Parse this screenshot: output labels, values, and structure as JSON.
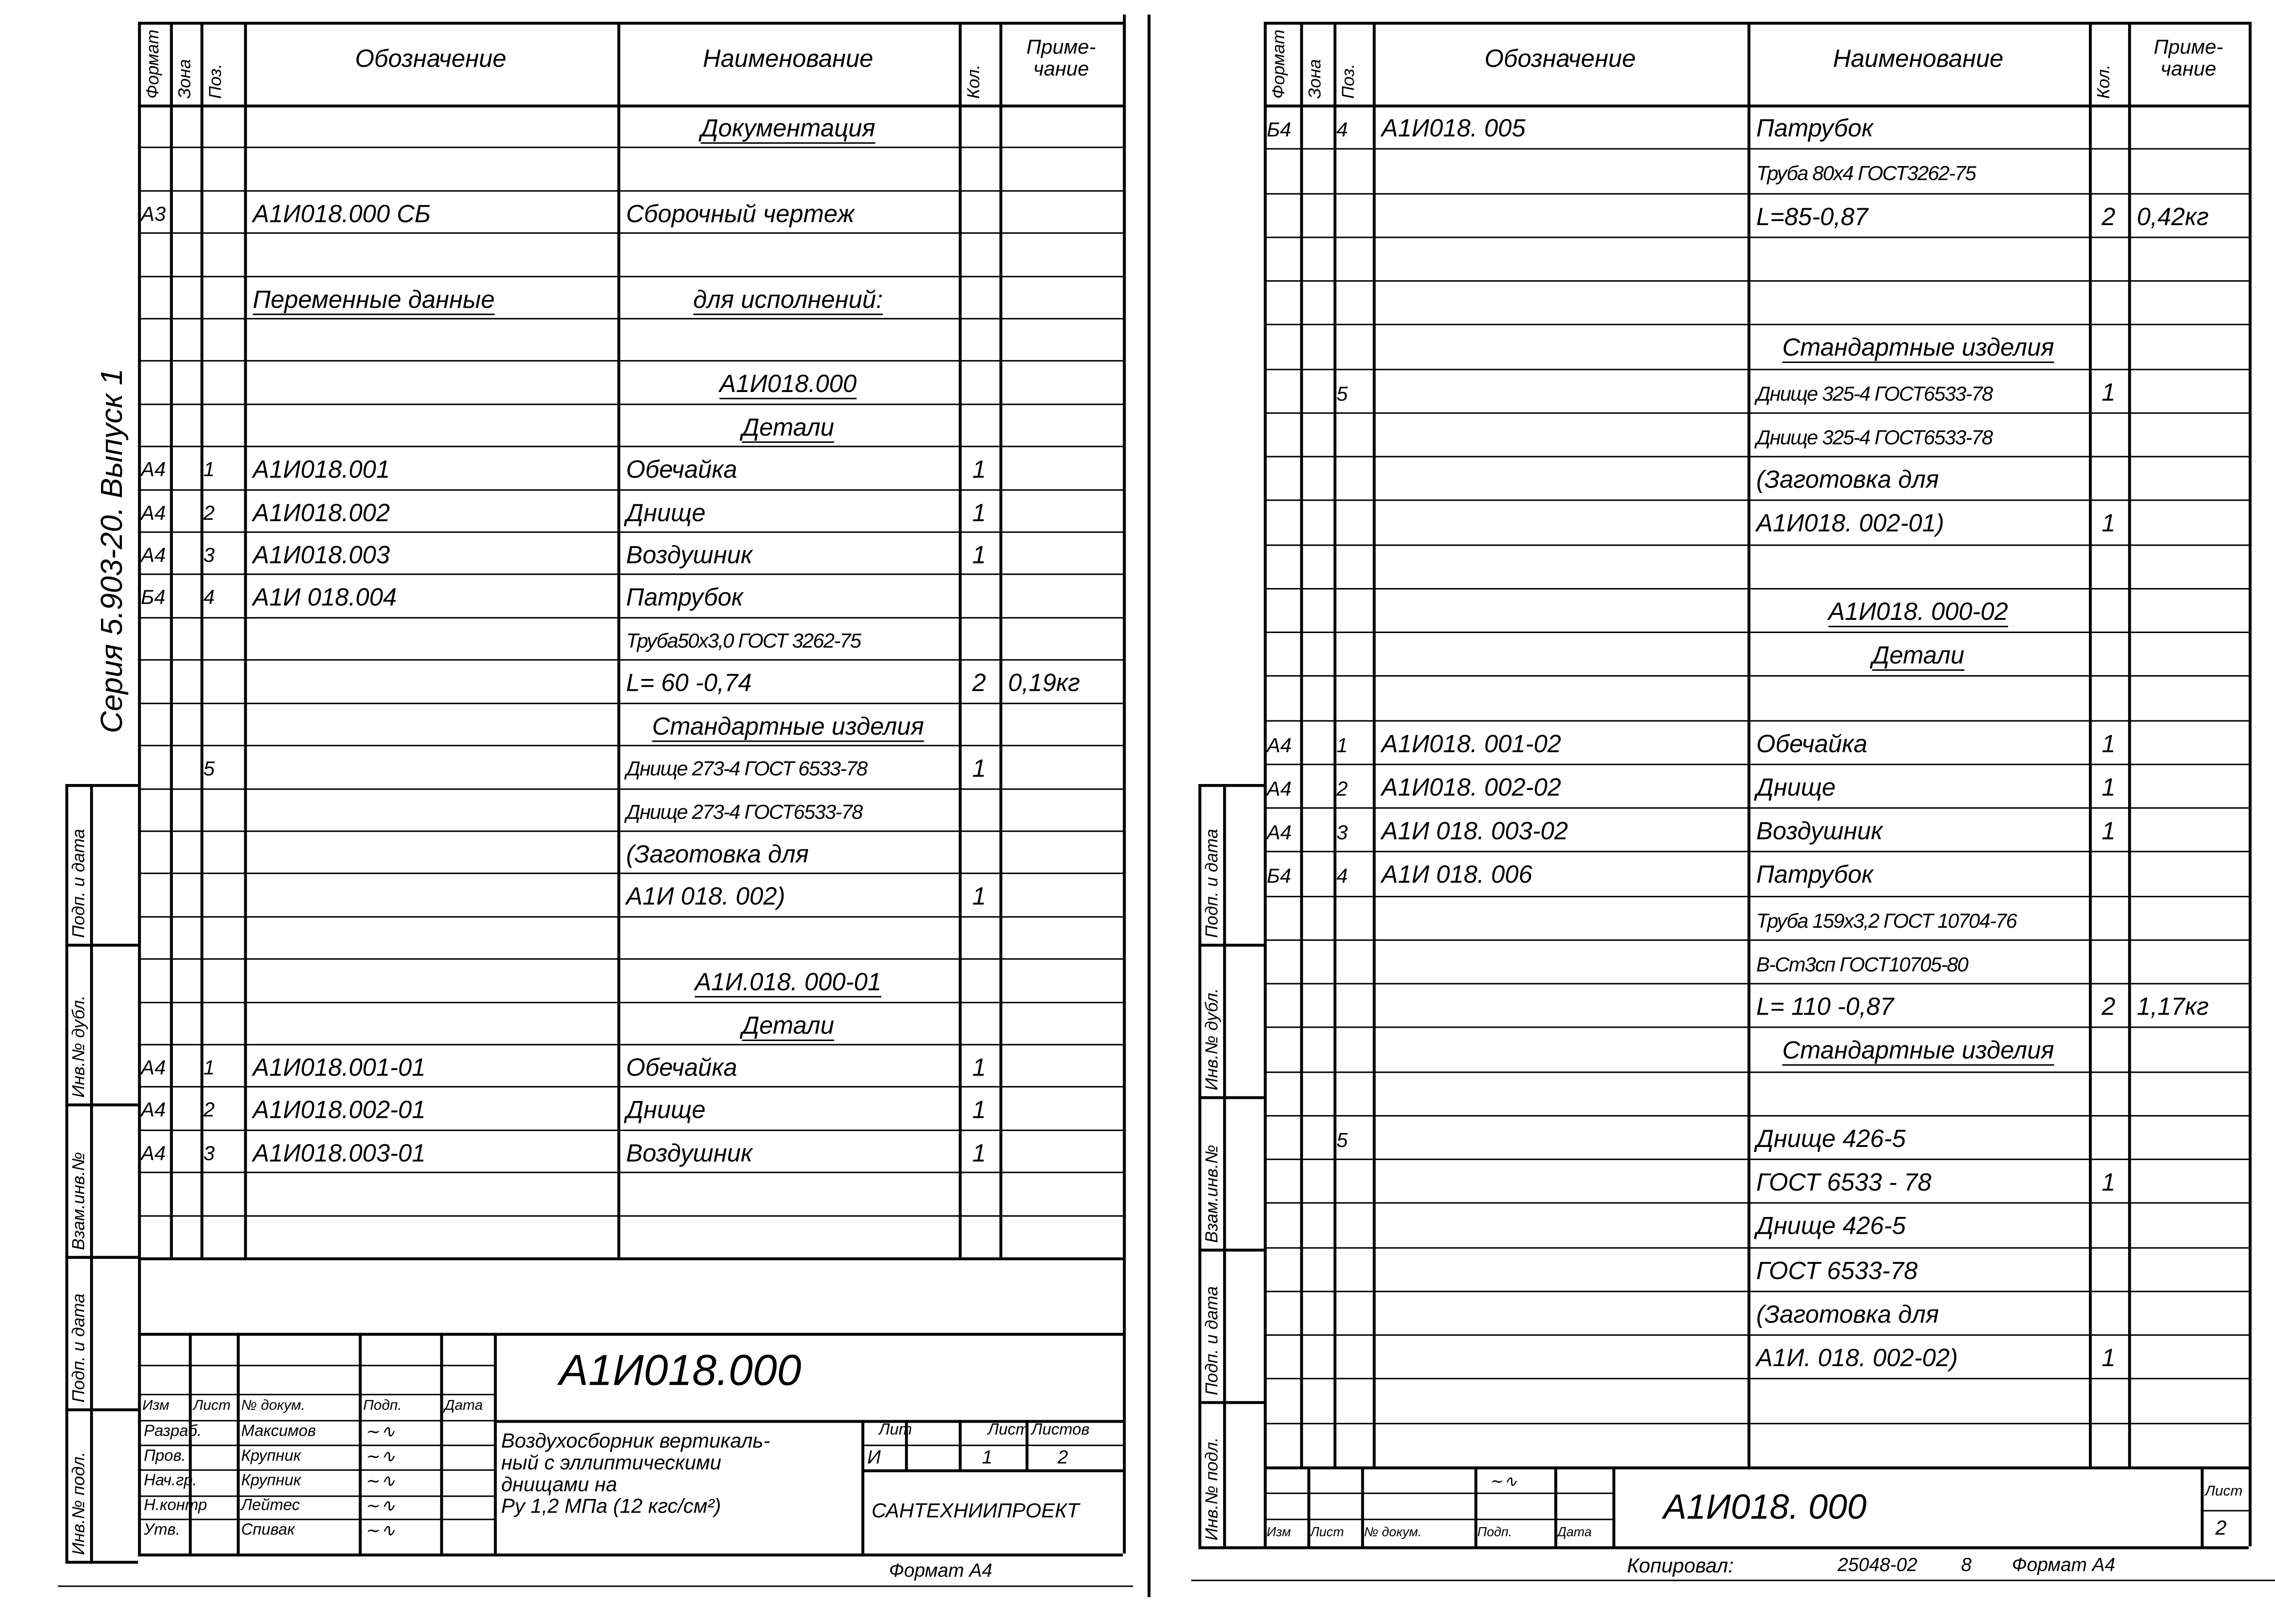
{
  "headers": {
    "format": "Формат",
    "zone": "Зона",
    "pos": "Поз.",
    "designation": "Обозначение",
    "name": "Наименование",
    "qty": "Кол.",
    "note": "Приме-\nчание"
  },
  "left_sheet": {
    "series_label": "Серия 5.903-20. Выпуск 1",
    "rows": [
      {
        "name": "Документация",
        "heading": true
      },
      {},
      {
        "format": "А3",
        "designation": "А1И018.000 СБ",
        "name": "Сборочный чертеж"
      },
      {},
      {
        "designation": "Переменные данные",
        "name": "для исполнений:",
        "heading": true
      },
      {},
      {
        "name": "А1И018.000",
        "heading": true
      },
      {
        "name": "Детали",
        "heading": true
      },
      {
        "format": "А4",
        "pos": "1",
        "designation": "А1И018.001",
        "name": "Обечайка",
        "qty": "1"
      },
      {
        "format": "А4",
        "pos": "2",
        "designation": "А1И018.002",
        "name": "Днище",
        "qty": "1"
      },
      {
        "format": "А4",
        "pos": "3",
        "designation": "А1И018.003",
        "name": "Воздушник",
        "qty": "1"
      },
      {
        "format": "Б4",
        "pos": "4",
        "designation": "А1И 018.004",
        "name": "Патрубок"
      },
      {
        "name": "Труба50х3,0 ГОСТ 3262-75"
      },
      {
        "name": "L= 60 -0,74",
        "qty": "2",
        "note": "0,19кг"
      },
      {
        "name": "Стандартные изделия",
        "heading": true
      },
      {
        "pos": "5",
        "name": "Днище 273-4 ГОСТ 6533-78",
        "qty": "1"
      },
      {
        "name": "Днище 273-4 ГОСТ6533-78"
      },
      {
        "name": "(Заготовка для"
      },
      {
        "name": "А1И 018. 002)",
        "qty": "1"
      },
      {},
      {
        "name": "А1И.018. 000-01",
        "heading": true
      },
      {
        "name": "Детали",
        "heading": true
      },
      {
        "format": "А4",
        "pos": "1",
        "designation": "А1И018.001-01",
        "name": "Обечайка",
        "qty": "1"
      },
      {
        "format": "А4",
        "pos": "2",
        "designation": "А1И018.002-01",
        "name": "Днище",
        "qty": "1"
      },
      {
        "format": "А4",
        "pos": "3",
        "designation": "А1И018.003-01",
        "name": "Воздушник",
        "qty": "1"
      },
      {},
      {}
    ],
    "title_block": {
      "designation": "А1И018.000",
      "col_headers": [
        "Изм",
        "Лист",
        "№ докум.",
        "Подп.",
        "Дата"
      ],
      "roles": [
        {
          "role": "Разраб.",
          "name": "Максимов"
        },
        {
          "role": "Пров.",
          "name": "Крупник"
        },
        {
          "role": "Нач.гр.",
          "name": "Крупник"
        },
        {
          "role": "Н.контр",
          "name": "Лейтес"
        },
        {
          "role": "Утв.",
          "name": "Спивак"
        }
      ],
      "title": "Воздухосборник вертикаль-\nный с эллиптическими\nднищами на\nРу 1,2 МПа (12 кгс/см²)",
      "lit_label": "Лит",
      "sheet_label": "Лист",
      "sheets_label": "Листов",
      "lit": "И",
      "sheet": "1",
      "sheets": "2",
      "organization": "САНТЕХНИИПРОЕКТ",
      "format": "Формат А4"
    }
  },
  "right_sheet": {
    "rows": [
      {
        "format": "Б4",
        "pos": "4",
        "designation": "А1И018. 005",
        "name": "Патрубок"
      },
      {
        "name": "Труба 80х4 ГОСТ3262-75"
      },
      {
        "name": "L=85-0,87",
        "qty": "2",
        "note": "0,42кг"
      },
      {},
      {},
      {
        "name": "Стандартные изделия",
        "heading": true
      },
      {
        "pos": "5",
        "name": "Днище 325-4 ГОСТ6533-78",
        "qty": "1"
      },
      {
        "name": "Днище 325-4 ГОСТ6533-78"
      },
      {
        "name": "(Заготовка для"
      },
      {
        "name": "А1И018. 002-01)",
        "qty": "1"
      },
      {},
      {
        "name": "А1И018. 000-02",
        "heading": true
      },
      {
        "name": "Детали",
        "heading": true
      },
      {},
      {
        "format": "А4",
        "pos": "1",
        "designation": "А1И018. 001-02",
        "name": "Обечайка",
        "qty": "1"
      },
      {
        "format": "А4",
        "pos": "2",
        "designation": "А1И018. 002-02",
        "name": "Днище",
        "qty": "1"
      },
      {
        "format": "А4",
        "pos": "3",
        "designation": "А1И 018. 003-02",
        "name": "Воздушник",
        "qty": "1"
      },
      {
        "format": "Б4",
        "pos": "4",
        "designation": "А1И 018. 006",
        "name": "Патрубок"
      },
      {
        "name": "Труба 159х3,2 ГОСТ 10704-76"
      },
      {
        "name": "      В-Ст3сп ГОСТ10705-80"
      },
      {
        "name": "L= 110 -0,87",
        "qty": "2",
        "note": "1,17кг"
      },
      {
        "name": "Стандартные изделия",
        "heading": true
      },
      {},
      {
        "pos": "5",
        "name": "Днище 426-5"
      },
      {
        "name": "ГОСТ 6533 - 78",
        "qty": "1"
      },
      {
        "name": "Днище 426-5"
      },
      {
        "name": "ГОСТ 6533-78"
      },
      {
        "name": "(Заготовка для"
      },
      {
        "name": "А1И. 018. 002-02)",
        "qty": "1"
      },
      {},
      {}
    ],
    "title_block": {
      "designation": "А1И018. 000",
      "col_headers": [
        "Изм",
        "Лист",
        "№ докум.",
        "Подп.",
        "Дата"
      ],
      "sheet_label": "Лист",
      "sheet": "2",
      "copied": "Копировал:",
      "order": "25048-02",
      "order_sheet": "8",
      "format": "Формат А4"
    }
  },
  "side_stamp": [
    "Инв.№ подл.",
    "Подп. и дата",
    "Взам.инв.№",
    "Инв.№ дубл.",
    "Подп. и дата"
  ]
}
